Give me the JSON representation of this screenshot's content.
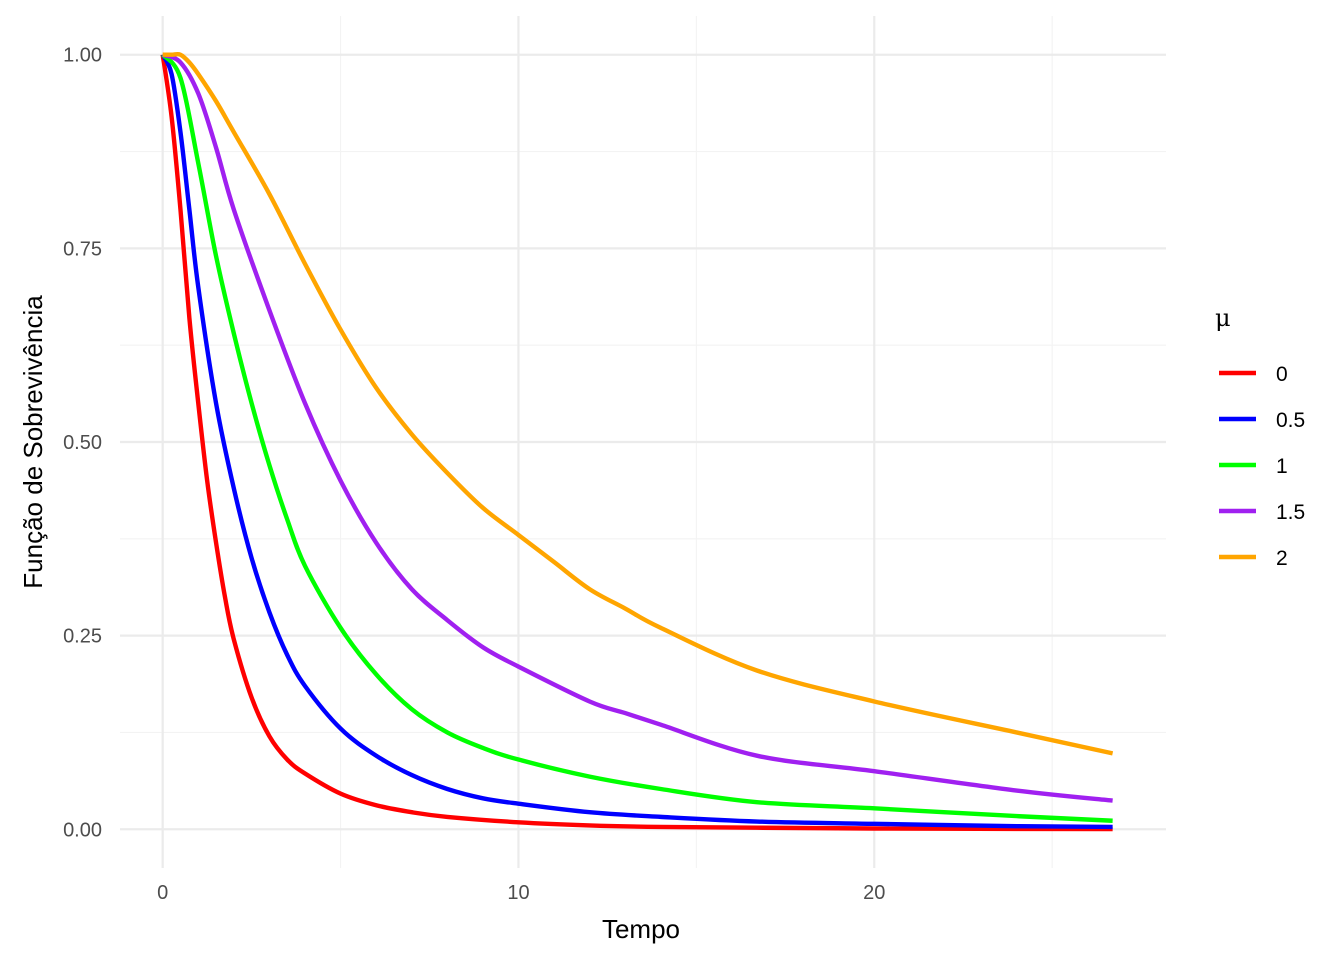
{
  "chart_data": {
    "type": "line",
    "xlabel": "Tempo",
    "ylabel": "Função de Sobrevivência",
    "xlim": [
      -1.2,
      28.2
    ],
    "ylim": [
      -0.05,
      1.05
    ],
    "x_ticks": [
      0,
      10,
      20
    ],
    "x_tick_labels": [
      "0",
      "10",
      "20"
    ],
    "x_minor_ticks": [
      5,
      15,
      25
    ],
    "y_ticks": [
      0,
      0.25,
      0.5,
      0.75,
      1.0
    ],
    "y_tick_labels": [
      "0.00",
      "0.25",
      "0.50",
      "0.75",
      "1.00"
    ],
    "y_minor_ticks": [
      0.125,
      0.375,
      0.625,
      0.875
    ],
    "grid": true,
    "legend": {
      "title": "μ",
      "position": "right"
    },
    "series": [
      {
        "name": "0",
        "color": "#ff0000",
        "x": [
          0,
          0.25,
          0.5,
          0.75,
          1,
          1.25,
          1.5,
          1.75,
          2,
          2.5,
          3,
          3.5,
          4,
          5,
          6,
          7,
          8,
          10,
          12,
          14,
          16.7,
          20,
          24,
          26.7
        ],
        "y": [
          1.0,
          0.92,
          0.8,
          0.66,
          0.55,
          0.45,
          0.37,
          0.3,
          0.245,
          0.17,
          0.12,
          0.09,
          0.072,
          0.046,
          0.031,
          0.022,
          0.016,
          0.009,
          0.005,
          0.003,
          0.002,
          0.001,
          0.0005,
          0.0003
        ]
      },
      {
        "name": "0.5",
        "color": "#0000ff",
        "x": [
          0,
          0.25,
          0.5,
          0.75,
          1,
          1.5,
          2,
          2.5,
          3,
          3.5,
          4,
          5,
          6,
          7,
          8,
          9,
          10,
          12,
          14,
          16.7,
          20,
          24,
          26.7
        ],
        "y": [
          1.0,
          0.975,
          0.9,
          0.8,
          0.7,
          0.55,
          0.44,
          0.35,
          0.28,
          0.225,
          0.185,
          0.13,
          0.095,
          0.07,
          0.052,
          0.04,
          0.033,
          0.022,
          0.016,
          0.01,
          0.007,
          0.004,
          0.003
        ]
      },
      {
        "name": "1",
        "color": "#00ff00",
        "x": [
          0,
          0.5,
          1,
          1.5,
          2,
          2.5,
          3,
          3.5,
          4,
          5,
          6,
          7,
          8,
          9,
          10,
          12,
          14,
          16.7,
          20,
          24,
          26.7
        ],
        "y": [
          1.0,
          0.97,
          0.86,
          0.74,
          0.64,
          0.55,
          0.47,
          0.4,
          0.34,
          0.26,
          0.2,
          0.155,
          0.125,
          0.105,
          0.09,
          0.068,
          0.052,
          0.035,
          0.027,
          0.017,
          0.011
        ]
      },
      {
        "name": "1.5",
        "color": "#a020f0",
        "x": [
          0,
          0.5,
          1,
          1.5,
          2,
          3,
          4,
          5,
          6,
          7,
          8,
          9,
          10,
          12,
          13,
          14,
          16.7,
          20,
          24,
          26.7
        ],
        "y": [
          1.0,
          0.99,
          0.95,
          0.88,
          0.8,
          0.67,
          0.55,
          0.45,
          0.37,
          0.31,
          0.27,
          0.235,
          0.21,
          0.165,
          0.15,
          0.135,
          0.095,
          0.075,
          0.05,
          0.037
        ]
      },
      {
        "name": "2",
        "color": "#ffa500",
        "x": [
          0,
          0.25,
          0.5,
          0.75,
          1,
          1.5,
          2,
          3,
          4,
          5,
          6,
          7,
          8,
          9,
          10,
          11,
          12,
          13,
          14,
          16.7,
          20,
          24,
          26.7
        ],
        "y": [
          1.0,
          1.0,
          1.0,
          0.99,
          0.975,
          0.94,
          0.9,
          0.82,
          0.73,
          0.645,
          0.57,
          0.51,
          0.46,
          0.415,
          0.38,
          0.345,
          0.31,
          0.285,
          0.26,
          0.205,
          0.165,
          0.125,
          0.098
        ]
      }
    ]
  }
}
